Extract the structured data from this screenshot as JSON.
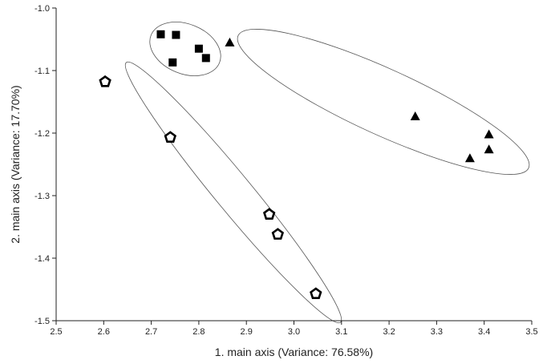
{
  "chart_data": {
    "type": "scatter",
    "title": "",
    "xlabel": "1. main axis (Variance: 76.58%)",
    "ylabel": "2. main axis (Variance: 17.70%)",
    "xlim": [
      2.5,
      3.5
    ],
    "ylim": [
      -1.5,
      -1.0
    ],
    "grid": false,
    "legend": "none",
    "x_ticks": [
      "2.5",
      "2.6",
      "2.7",
      "2.8",
      "2.9",
      "3.0",
      "3.1",
      "3.2",
      "3.3",
      "3.4",
      "3.5"
    ],
    "y_ticks": [
      "-1.0",
      "-1.1",
      "-1.2",
      "-1.3",
      "-1.4",
      "-1.5"
    ],
    "series": [
      {
        "marker": "square",
        "color": "#000000",
        "points": [
          [
            2.72,
            -1.042
          ],
          [
            2.752,
            -1.043
          ],
          [
            2.745,
            -1.087
          ],
          [
            2.8,
            -1.065
          ],
          [
            2.815,
            -1.08
          ]
        ]
      },
      {
        "marker": "triangle",
        "color": "#000000",
        "points": [
          [
            2.865,
            -1.055
          ],
          [
            3.255,
            -1.173
          ],
          [
            3.41,
            -1.202
          ],
          [
            3.41,
            -1.226
          ],
          [
            3.37,
            -1.24
          ]
        ]
      },
      {
        "marker": "pentagon",
        "color": "#ffffff",
        "points": [
          [
            2.603,
            -1.118
          ],
          [
            2.74,
            -1.207
          ],
          [
            2.948,
            -1.33
          ],
          [
            2.966,
            -1.362
          ],
          [
            3.046,
            -1.457
          ]
        ]
      }
    ]
  }
}
